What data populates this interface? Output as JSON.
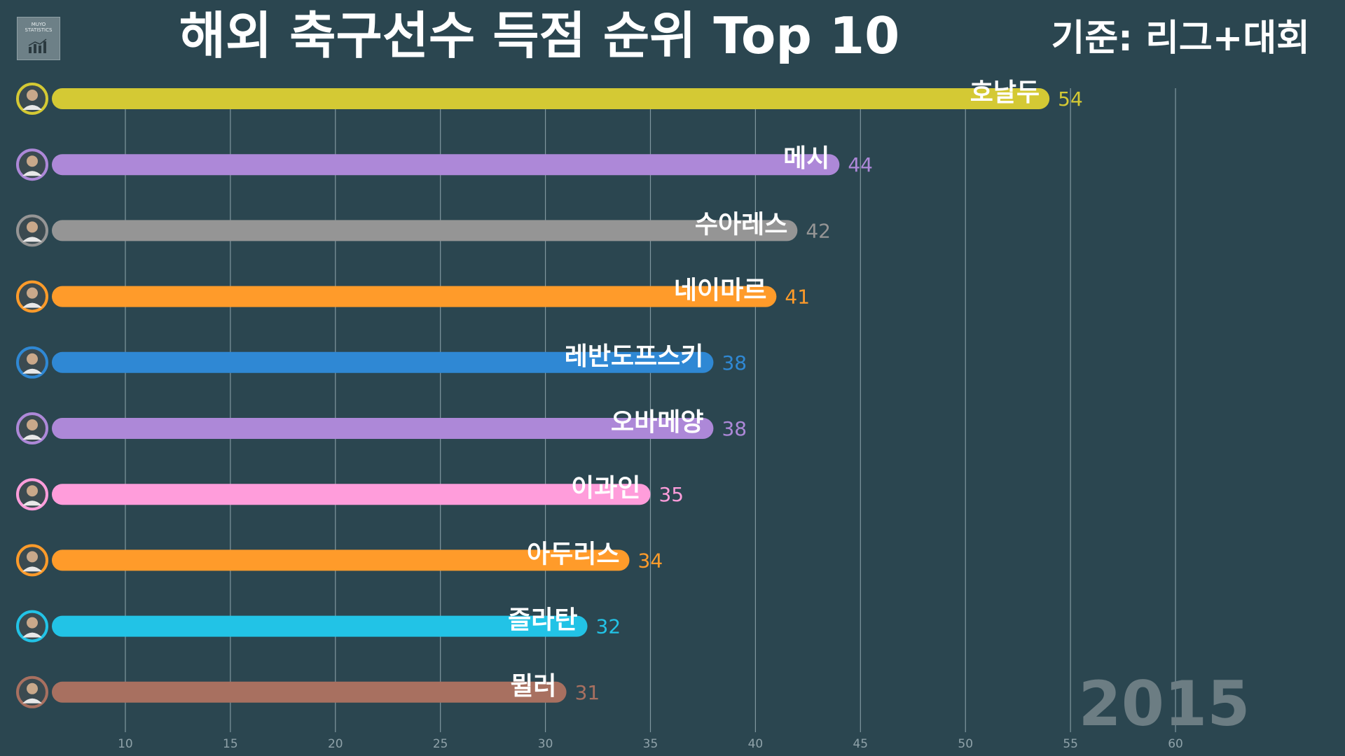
{
  "logo": {
    "text": "MUYO\nSTATISTICS"
  },
  "header": {
    "title": "해외 축구선수 득점 순위 Top 10",
    "criteria": "기준: 리그+대회"
  },
  "year": "2015",
  "chart_data": {
    "type": "bar",
    "orientation": "horizontal",
    "title": "해외 축구선수 득점 순위 Top 10",
    "categories": [
      "호날두",
      "메시",
      "수아레스",
      "네이마르",
      "레반도프스키",
      "오바메양",
      "이과인",
      "아두리스",
      "즐라탄",
      "뮐러"
    ],
    "values": [
      54,
      44,
      42,
      41,
      38,
      38,
      35,
      34,
      32,
      31
    ],
    "colors": [
      "#d4c934",
      "#ad88d8",
      "#959595",
      "#ff9b2a",
      "#2f88d4",
      "#ad88d8",
      "#ff9ddb",
      "#ff9b2a",
      "#22c3e6",
      "#a87060"
    ],
    "xlim": [
      6.5,
      63
    ],
    "ticks": [
      10,
      15,
      20,
      25,
      30,
      35,
      40,
      45,
      50,
      55,
      60
    ],
    "grid": true
  }
}
